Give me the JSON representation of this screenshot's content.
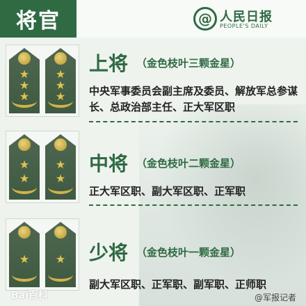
{
  "header": {
    "title": "将官",
    "logo_cn": "人民日报",
    "logo_en": "PEOPLE'S DAILY",
    "logo_symbol": "@"
  },
  "ranks": [
    {
      "title": "上将",
      "subtitle": "（金色枝叶三颗金星）",
      "description": "中央军事委员会副主席及委员、解放军总参谋长、总政治部主任、正大军区职",
      "stars": 3
    },
    {
      "title": "中将",
      "subtitle": "（金色枝叶二颗金星）",
      "description": "正大军区职、副大军区职、正军职",
      "stars": 2
    },
    {
      "title": "少将",
      "subtitle": "（金色枝叶一颗金星）",
      "description": "副大军区职、正军职、副军职、正师职",
      "stars": 1
    }
  ],
  "watermarks": {
    "left": "Bai百科",
    "right": "@军报记者"
  },
  "colors": {
    "primary_green": "#2f6a43",
    "gold": "#e0c34f",
    "board_green": "#3f5a42"
  },
  "icons": {
    "star": "star-icon",
    "wreath": "wreath-icon",
    "button": "board-button-icon"
  }
}
